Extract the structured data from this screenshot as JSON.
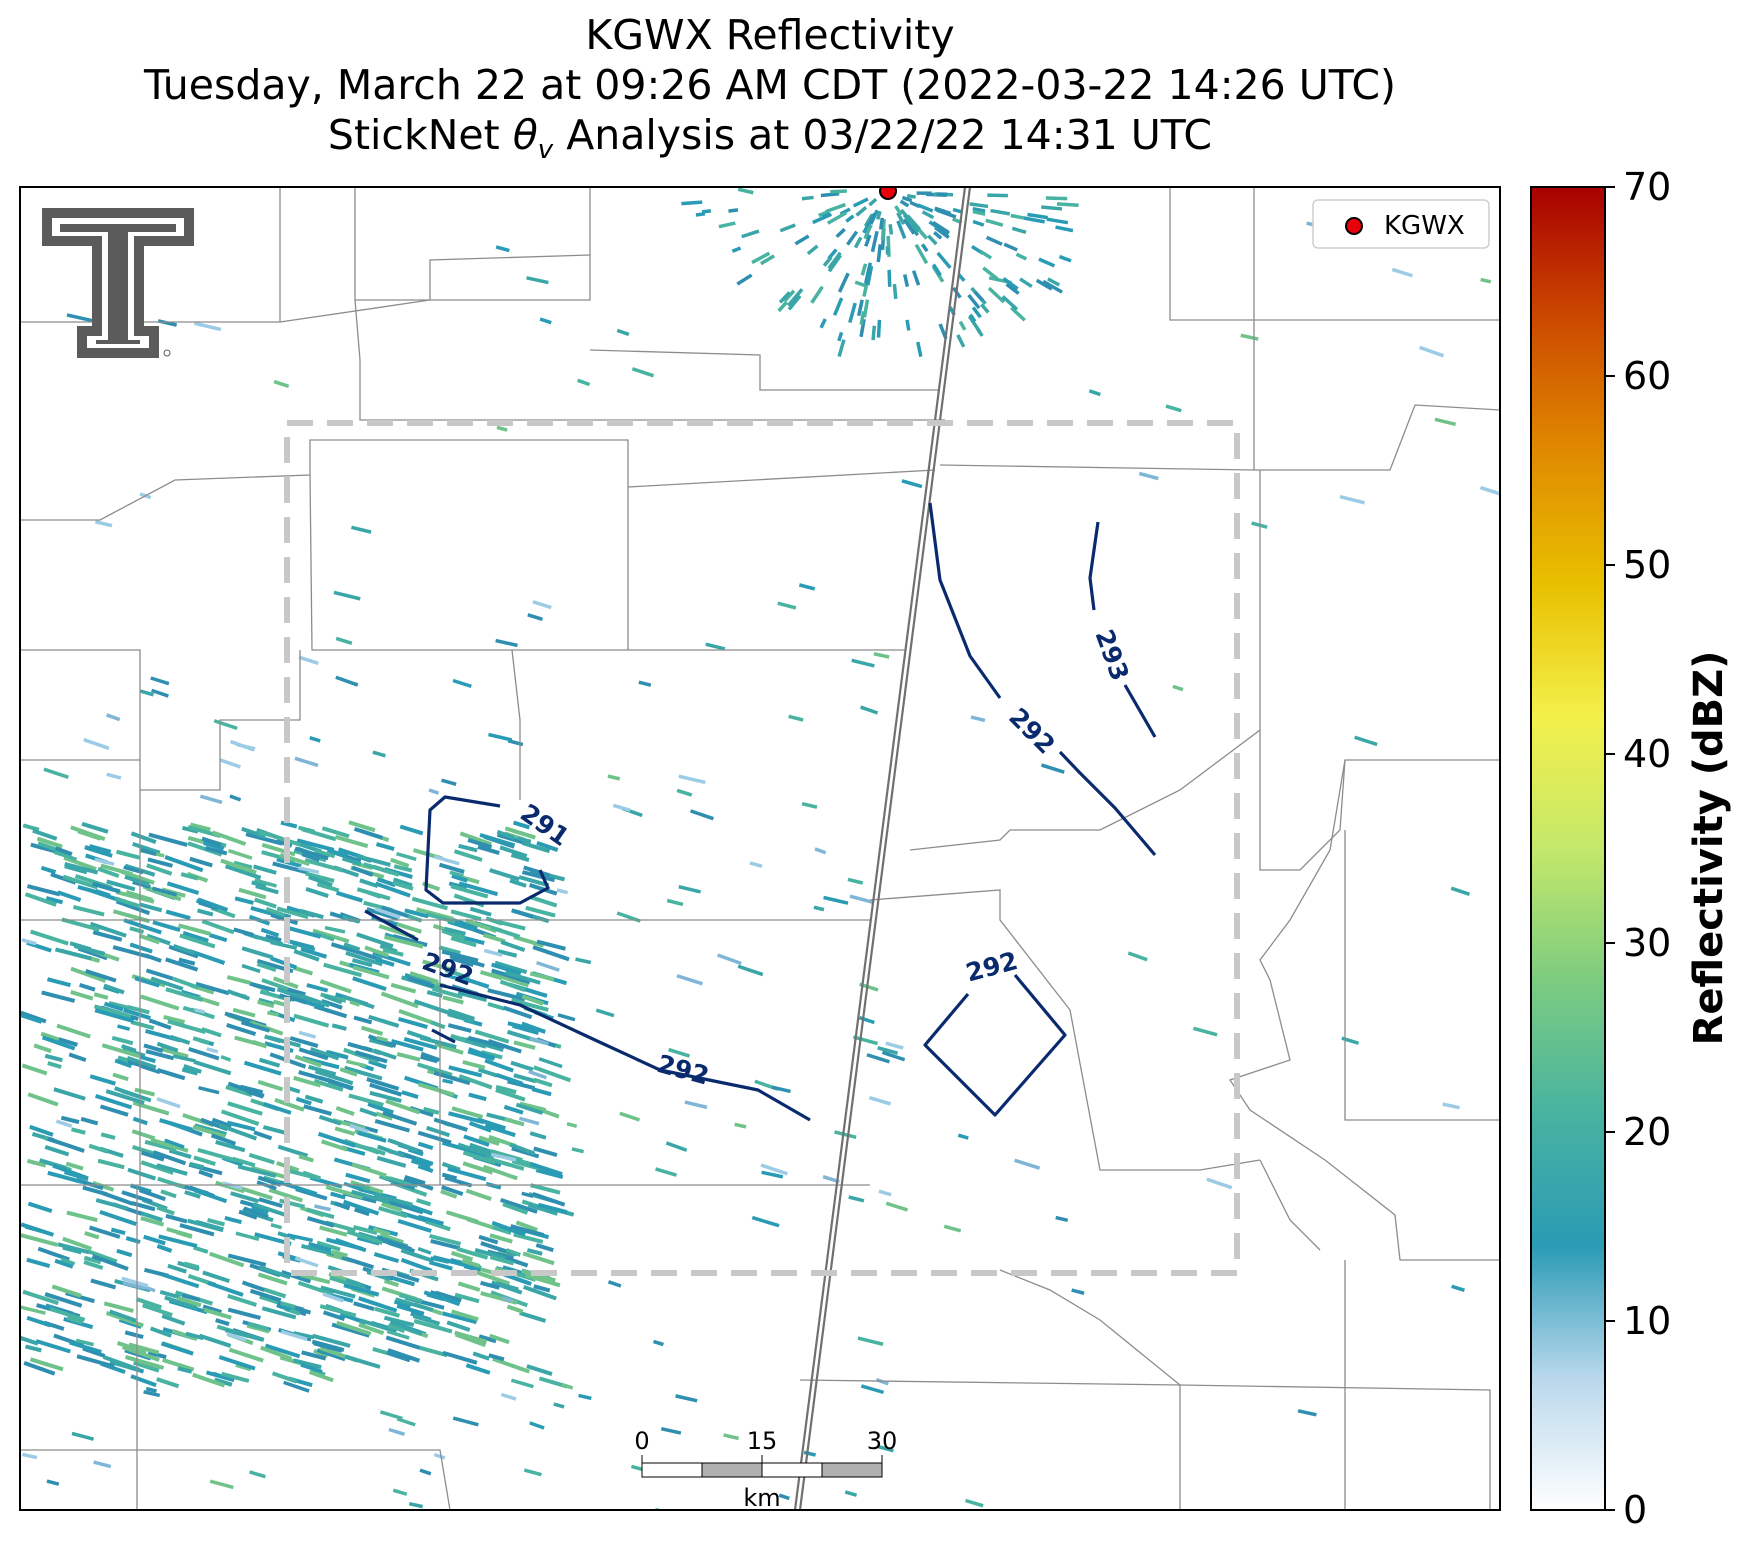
{
  "title": {
    "line1": "KGWX Reflectivity",
    "line2": "Tuesday, March 22 at 09:26 AM CDT (2022-03-22 14:26 UTC)",
    "line3_prefix": "StickNet ",
    "line3_symbol": "θ",
    "line3_subscript": "v",
    "line3_suffix": " Analysis at 03/22/22 14:31 UTC"
  },
  "legend": {
    "radar_label": "KGWX",
    "marker_color": "#e8000b"
  },
  "colorbar": {
    "label": "Reflectivity (dBZ)",
    "min": 0,
    "max": 70,
    "ticks": [
      "0",
      "10",
      "20",
      "30",
      "40",
      "50",
      "60",
      "70"
    ],
    "stops": [
      "#ffffff",
      "#b9d8ec",
      "#2a9bb5",
      "#48b3a0",
      "#7ccc80",
      "#c4e86a",
      "#f3f04a",
      "#e8c000",
      "#e08a00",
      "#cc4a00",
      "#a80000"
    ]
  },
  "scale_bar": {
    "ticks": [
      "0",
      "15",
      "30"
    ],
    "unit": "km"
  },
  "contours": [
    "291",
    "292",
    "292",
    "292",
    "292",
    "293"
  ],
  "colors": {
    "contour": "#0a2a6e",
    "analysis_box": "#c8c8c8",
    "county_lines": "#8c8c8c",
    "highway": "#707070",
    "echo": "#2a9bb5"
  }
}
